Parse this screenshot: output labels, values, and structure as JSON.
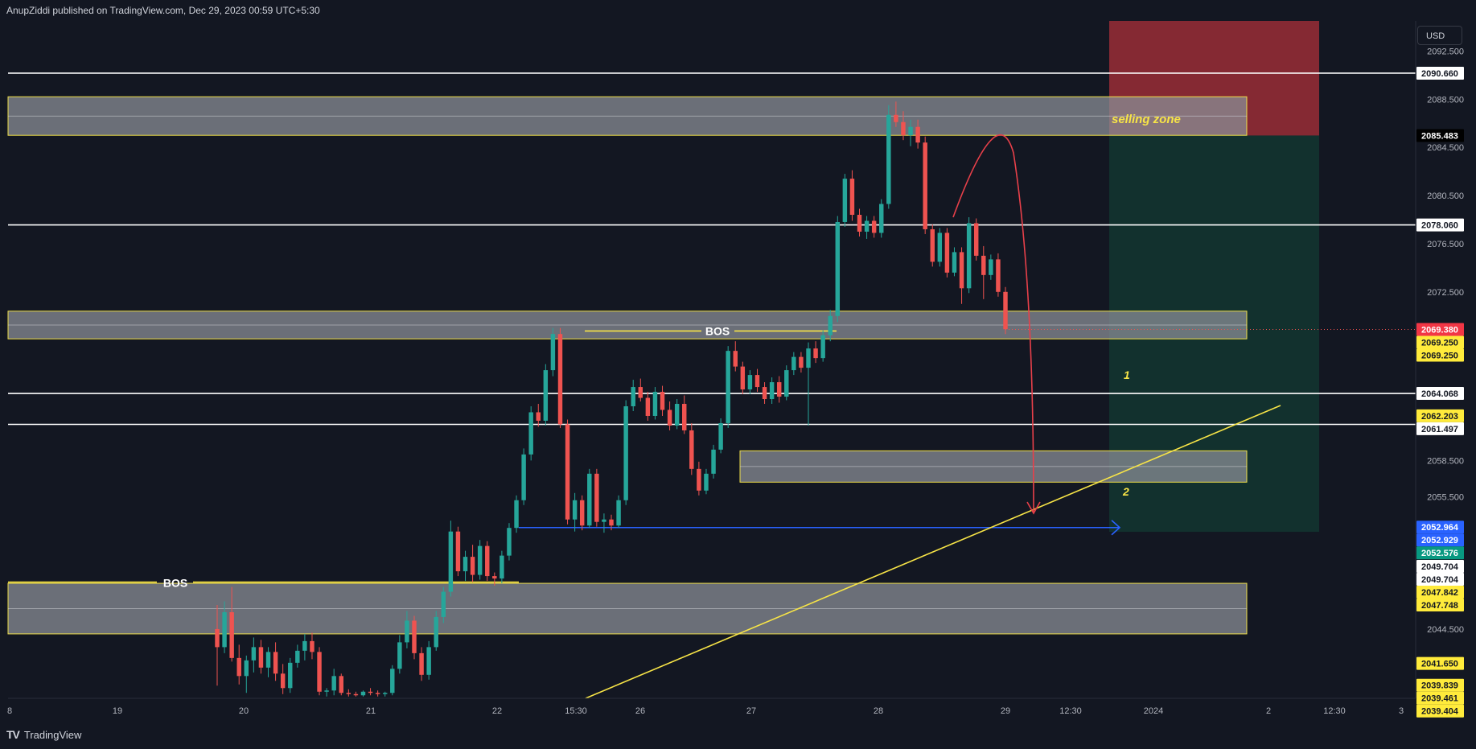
{
  "header": {
    "published": "AnupZiddi published on TradingView.com, Dec 29, 2023 00:59 UTC+5:30"
  },
  "footer": {
    "brand": "TradingView"
  },
  "currency": "USD",
  "colors": {
    "background": "#131722",
    "bull": "#26a69a",
    "bear": "#ef5350",
    "zone_stroke": "#f0e04a",
    "zone_fill": "#8a8d96",
    "stop_zone": "#8b2a35",
    "target_zone": "#12332f",
    "trendline": "#f7e447",
    "blue_line": "#2962ff",
    "arrow_red": "#e8404a"
  },
  "chart_data": {
    "type": "candlestick",
    "y_axis": {
      "range": [
        2038.75,
        2095.0
      ],
      "tick_labels": [
        "2092.500",
        "2088.500",
        "2084.500",
        "2080.500",
        "2076.500",
        "2072.500",
        "2058.500",
        "2055.500",
        "2044.500"
      ]
    },
    "x_axis": {
      "tick_labels": [
        "8",
        "19",
        "20",
        "21",
        "22",
        "15:30",
        "26",
        "27",
        "28",
        "29",
        "12:30",
        "2024",
        "2",
        "12:30",
        "3"
      ]
    },
    "price_labels": [
      {
        "value": 2090.66,
        "text": "2090.660",
        "style": "white"
      },
      {
        "value": 2085.483,
        "text": "2085.483",
        "style": "black"
      },
      {
        "value": 2078.06,
        "text": "2078.060",
        "style": "white"
      },
      {
        "value": 2069.38,
        "text": "2069.380",
        "style": "red"
      },
      {
        "value": 2069.25,
        "text": "2069.250",
        "style": "yellow"
      },
      {
        "value": 2069.25,
        "text": "2069.250",
        "style": "yellow"
      },
      {
        "value": 2064.068,
        "text": "2064.068",
        "style": "white"
      },
      {
        "value": 2062.203,
        "text": "2062.203",
        "style": "yellow"
      },
      {
        "value": 2061.497,
        "text": "2061.497",
        "style": "white"
      },
      {
        "value": 2052.964,
        "text": "2052.964",
        "style": "blue"
      },
      {
        "value": 2052.929,
        "text": "2052.929",
        "style": "blue"
      },
      {
        "value": 2052.576,
        "text": "2052.576",
        "style": "green"
      },
      {
        "value": 2049.704,
        "text": "2049.704",
        "style": "white"
      },
      {
        "value": 2049.704,
        "text": "2049.704",
        "style": "white"
      },
      {
        "value": 2047.842,
        "text": "2047.842",
        "style": "yellow"
      },
      {
        "value": 2047.748,
        "text": "2047.748",
        "style": "yellow"
      },
      {
        "value": 2041.65,
        "text": "2041.650",
        "style": "yellow"
      },
      {
        "value": 2039.839,
        "text": "2039.839",
        "style": "yellow"
      },
      {
        "value": 2039.461,
        "text": "2039.461",
        "style": "yellow"
      },
      {
        "value": 2039.404,
        "text": "2039.404",
        "style": "yellow"
      }
    ],
    "horizontal_lines": [
      2090.66,
      2078.06,
      2064.068,
      2061.497
    ],
    "zones": [
      {
        "top": 2088.7,
        "bottom": 2085.5
      },
      {
        "top": 2070.9,
        "bottom": 2068.6
      },
      {
        "top": 2059.3,
        "bottom": 2056.7
      },
      {
        "top": 2048.3,
        "bottom": 2044.1
      }
    ],
    "position": {
      "entry": 2085.483,
      "stop": 2095.0,
      "target": 2052.576
    },
    "annotations": [
      {
        "text": "selling zone"
      },
      {
        "text": "BOS"
      },
      {
        "text": "BOS"
      },
      {
        "text": "1"
      },
      {
        "text": "2"
      }
    ],
    "candles": [
      [
        2044.5,
        2046.5,
        2039.8,
        2043.0
      ],
      [
        2043.0,
        2046.8,
        2042.5,
        2045.9
      ],
      [
        2045.9,
        2048.0,
        2041.8,
        2042.1
      ],
      [
        2042.1,
        2043.2,
        2039.9,
        2040.6
      ],
      [
        2040.6,
        2042.3,
        2039.2,
        2041.9
      ],
      [
        2041.9,
        2043.8,
        2040.9,
        2043.0
      ],
      [
        2043.0,
        2043.6,
        2040.8,
        2041.3
      ],
      [
        2041.3,
        2043.0,
        2040.5,
        2042.6
      ],
      [
        2042.6,
        2043.4,
        2040.2,
        2040.8
      ],
      [
        2040.8,
        2041.6,
        2039.1,
        2039.6
      ],
      [
        2039.6,
        2042.1,
        2039.2,
        2041.7
      ],
      [
        2041.7,
        2043.2,
        2041.3,
        2042.7
      ],
      [
        2042.7,
        2044.1,
        2041.9,
        2043.5
      ],
      [
        2043.5,
        2044.2,
        2042.0,
        2042.6
      ],
      [
        2042.6,
        2043.0,
        2039.0,
        2039.3
      ],
      [
        2039.3,
        2039.6,
        2038.9,
        2039.4
      ],
      [
        2039.4,
        2041.2,
        2039.0,
        2040.6
      ],
      [
        2040.6,
        2040.8,
        2039.0,
        2039.2
      ],
      [
        2039.2,
        2039.5,
        2038.9,
        2039.1
      ],
      [
        2039.1,
        2039.3,
        2038.9,
        2039.0
      ],
      [
        2039.0,
        2039.4,
        2038.9,
        2039.3
      ],
      [
        2039.3,
        2039.6,
        2039.0,
        2039.2
      ],
      [
        2039.2,
        2039.4,
        2038.9,
        2039.1
      ],
      [
        2039.1,
        2039.3,
        2038.9,
        2039.2
      ],
      [
        2039.2,
        2041.5,
        2039.0,
        2041.2
      ],
      [
        2041.2,
        2044.0,
        2040.8,
        2043.4
      ],
      [
        2043.4,
        2046.0,
        2042.9,
        2045.2
      ],
      [
        2045.2,
        2045.6,
        2042.0,
        2042.5
      ],
      [
        2042.5,
        2043.0,
        2040.2,
        2040.7
      ],
      [
        2040.7,
        2043.5,
        2040.3,
        2043.0
      ],
      [
        2043.0,
        2046.0,
        2042.7,
        2045.5
      ],
      [
        2045.5,
        2048.0,
        2045.0,
        2047.6
      ],
      [
        2047.6,
        2053.5,
        2047.2,
        2052.6
      ],
      [
        2052.6,
        2053.0,
        2048.9,
        2049.3
      ],
      [
        2049.3,
        2051.0,
        2048.5,
        2050.5
      ],
      [
        2050.5,
        2051.5,
        2048.4,
        2049.0
      ],
      [
        2049.0,
        2051.9,
        2048.6,
        2051.4
      ],
      [
        2051.4,
        2051.8,
        2048.5,
        2048.9
      ],
      [
        2048.9,
        2049.2,
        2048.1,
        2048.7
      ],
      [
        2048.7,
        2051.0,
        2048.3,
        2050.6
      ],
      [
        2050.6,
        2053.3,
        2050.2,
        2052.9
      ],
      [
        2052.9,
        2055.6,
        2052.5,
        2055.2
      ],
      [
        2055.2,
        2059.5,
        2054.8,
        2059.0
      ],
      [
        2059.0,
        2063.0,
        2058.5,
        2062.5
      ],
      [
        2062.5,
        2063.2,
        2061.3,
        2061.8
      ],
      [
        2061.8,
        2066.5,
        2061.4,
        2066.0
      ],
      [
        2066.0,
        2069.5,
        2065.5,
        2069.0
      ],
      [
        2069.0,
        2069.5,
        2061.2,
        2061.5
      ],
      [
        2061.5,
        2061.9,
        2053.2,
        2053.6
      ],
      [
        2053.6,
        2055.8,
        2052.6,
        2055.2
      ],
      [
        2055.2,
        2055.6,
        2052.7,
        2053.1
      ],
      [
        2053.1,
        2057.8,
        2052.9,
        2057.4
      ],
      [
        2057.4,
        2057.8,
        2053.0,
        2053.4
      ],
      [
        2053.4,
        2054.1,
        2052.5,
        2053.6
      ],
      [
        2053.6,
        2054.0,
        2052.7,
        2053.1
      ],
      [
        2053.1,
        2055.6,
        2052.9,
        2055.2
      ],
      [
        2055.2,
        2063.5,
        2054.8,
        2063.0
      ],
      [
        2063.0,
        2065.2,
        2062.6,
        2064.6
      ],
      [
        2064.6,
        2065.3,
        2063.4,
        2063.7
      ],
      [
        2063.7,
        2064.2,
        2061.8,
        2062.2
      ],
      [
        2062.2,
        2064.6,
        2061.9,
        2064.2
      ],
      [
        2064.2,
        2064.7,
        2062.2,
        2062.7
      ],
      [
        2062.7,
        2063.4,
        2061.0,
        2061.4
      ],
      [
        2061.4,
        2063.6,
        2061.1,
        2063.2
      ],
      [
        2063.2,
        2063.9,
        2060.7,
        2061.0
      ],
      [
        2061.0,
        2061.6,
        2057.3,
        2057.8
      ],
      [
        2057.8,
        2058.4,
        2055.6,
        2056.0
      ],
      [
        2056.0,
        2057.8,
        2055.7,
        2057.4
      ],
      [
        2057.4,
        2059.8,
        2057.0,
        2059.4
      ],
      [
        2059.4,
        2062.0,
        2059.1,
        2061.6
      ],
      [
        2061.6,
        2068.0,
        2061.2,
        2067.6
      ],
      [
        2067.6,
        2068.4,
        2065.9,
        2066.3
      ],
      [
        2066.3,
        2066.7,
        2064.0,
        2064.4
      ],
      [
        2064.4,
        2066.0,
        2064.0,
        2065.6
      ],
      [
        2065.6,
        2066.1,
        2064.2,
        2064.6
      ],
      [
        2064.6,
        2065.0,
        2063.2,
        2063.6
      ],
      [
        2063.6,
        2065.4,
        2063.2,
        2065.0
      ],
      [
        2065.0,
        2065.5,
        2063.3,
        2063.8
      ],
      [
        2063.8,
        2066.4,
        2063.5,
        2066.0
      ],
      [
        2066.0,
        2067.5,
        2065.6,
        2067.1
      ],
      [
        2067.1,
        2067.5,
        2065.8,
        2066.2
      ],
      [
        2066.2,
        2068.3,
        2061.4,
        2067.8
      ],
      [
        2067.8,
        2068.4,
        2066.6,
        2067.0
      ],
      [
        2067.0,
        2069.3,
        2066.7,
        2068.9
      ],
      [
        2068.9,
        2071.0,
        2068.4,
        2070.5
      ],
      [
        2070.5,
        2078.8,
        2070.0,
        2078.3
      ],
      [
        2078.3,
        2082.3,
        2077.9,
        2081.9
      ],
      [
        2081.9,
        2082.6,
        2078.4,
        2078.9
      ],
      [
        2078.9,
        2079.4,
        2077.1,
        2077.5
      ],
      [
        2077.5,
        2078.8,
        2076.9,
        2078.4
      ],
      [
        2078.4,
        2078.8,
        2077.0,
        2077.4
      ],
      [
        2077.4,
        2080.2,
        2077.0,
        2079.8
      ],
      [
        2079.8,
        2088.0,
        2079.4,
        2087.2
      ],
      [
        2087.2,
        2088.3,
        2086.2,
        2086.6
      ],
      [
        2086.6,
        2087.5,
        2085.1,
        2085.5
      ],
      [
        2085.5,
        2086.8,
        2084.6,
        2086.2
      ],
      [
        2086.2,
        2086.8,
        2084.4,
        2084.9
      ],
      [
        2084.9,
        2085.4,
        2077.3,
        2077.7
      ],
      [
        2077.7,
        2078.1,
        2074.6,
        2075.0
      ],
      [
        2075.0,
        2077.8,
        2074.6,
        2077.4
      ],
      [
        2077.4,
        2077.8,
        2073.7,
        2074.1
      ],
      [
        2074.1,
        2076.2,
        2073.8,
        2075.8
      ],
      [
        2075.8,
        2076.2,
        2071.5,
        2072.8
      ],
      [
        2072.8,
        2078.7,
        2072.4,
        2078.2
      ],
      [
        2078.2,
        2078.6,
        2075.1,
        2075.5
      ],
      [
        2075.5,
        2076.3,
        2071.9,
        2073.9
      ],
      [
        2073.9,
        2075.6,
        2073.5,
        2075.2
      ],
      [
        2075.2,
        2075.7,
        2072.1,
        2072.5
      ],
      [
        2072.5,
        2072.9,
        2069.0,
        2069.4
      ]
    ]
  }
}
